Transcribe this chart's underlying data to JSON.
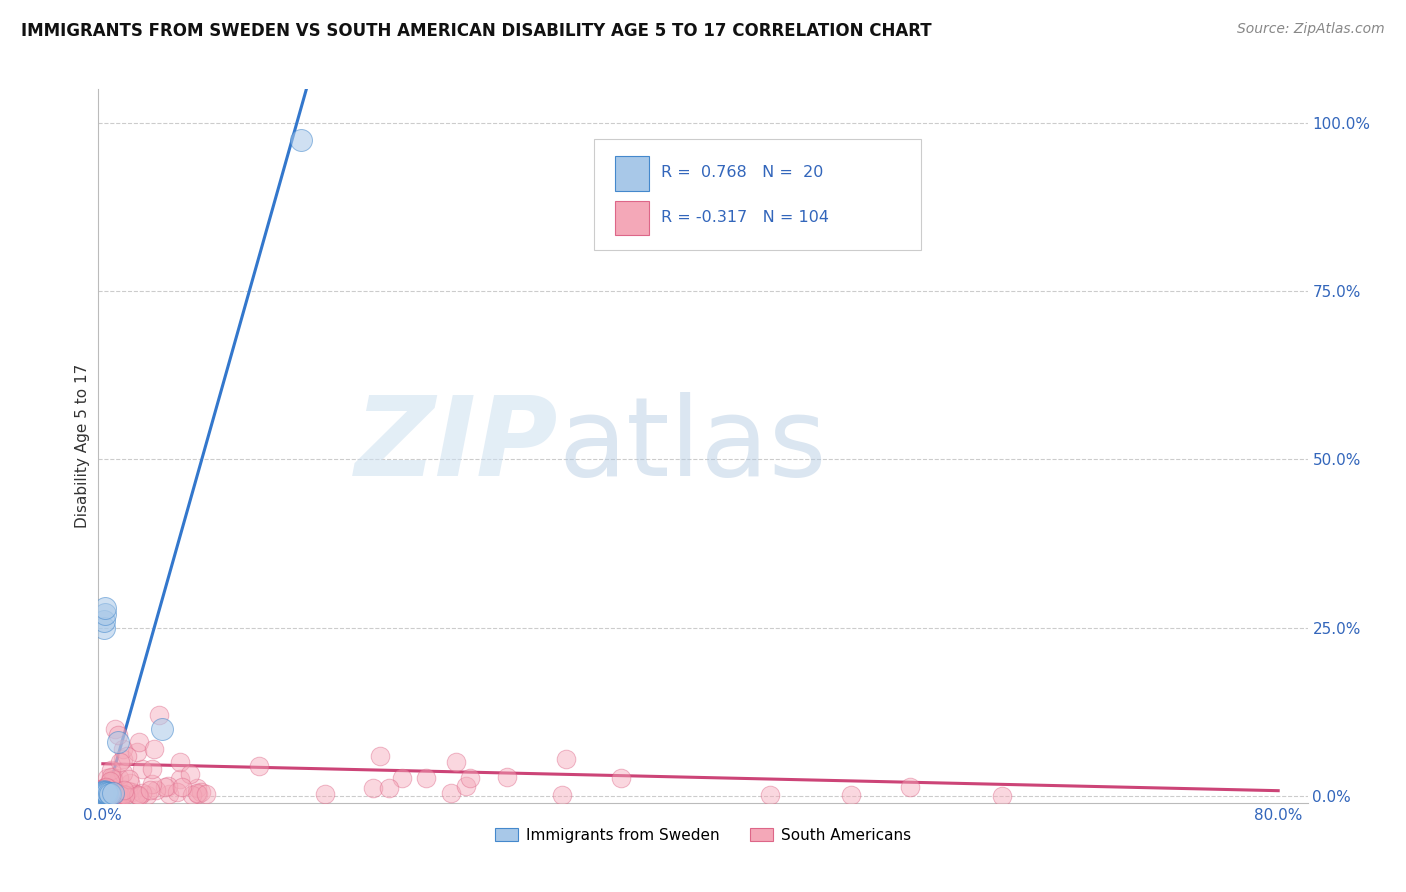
{
  "title": "IMMIGRANTS FROM SWEDEN VS SOUTH AMERICAN DISABILITY AGE 5 TO 17 CORRELATION CHART",
  "source": "Source: ZipAtlas.com",
  "ylabel": "Disability Age 5 to 17",
  "right_yticks": [
    "0.0%",
    "25.0%",
    "50.0%",
    "75.0%",
    "100.0%"
  ],
  "right_ytick_vals": [
    0.0,
    0.25,
    0.5,
    0.75,
    1.0
  ],
  "legend_blue_r": "0.768",
  "legend_blue_n": "20",
  "legend_pink_r": "-0.317",
  "legend_pink_n": "104",
  "blue_fill": "#a8c8e8",
  "pink_fill": "#f4a8b8",
  "blue_edge": "#4488cc",
  "pink_edge": "#dd6688",
  "blue_line": "#3377cc",
  "pink_line": "#cc4477",
  "title_fontsize": 12,
  "source_fontsize": 10,
  "sweden_x": [
    0.0002,
    0.0003,
    0.0004,
    0.0005,
    0.0006,
    0.0007,
    0.0008,
    0.001,
    0.001,
    0.0012,
    0.0015,
    0.002,
    0.002,
    0.003,
    0.004,
    0.005,
    0.007,
    0.01,
    0.04,
    0.135
  ],
  "sweden_y": [
    0.005,
    0.003,
    0.006,
    0.004,
    0.007,
    0.005,
    0.006,
    0.25,
    0.26,
    0.27,
    0.28,
    0.005,
    0.006,
    0.004,
    0.005,
    0.003,
    0.004,
    0.08,
    0.1,
    0.975
  ],
  "blue_line_x": [
    0.0,
    0.2
  ],
  "blue_line_y": [
    0.005,
    1.05
  ],
  "pink_line_x": [
    0.0,
    0.8
  ],
  "pink_line_y": [
    0.055,
    0.005
  ],
  "xlim": [
    -0.003,
    0.82
  ],
  "ylim": [
    -0.01,
    1.05
  ]
}
